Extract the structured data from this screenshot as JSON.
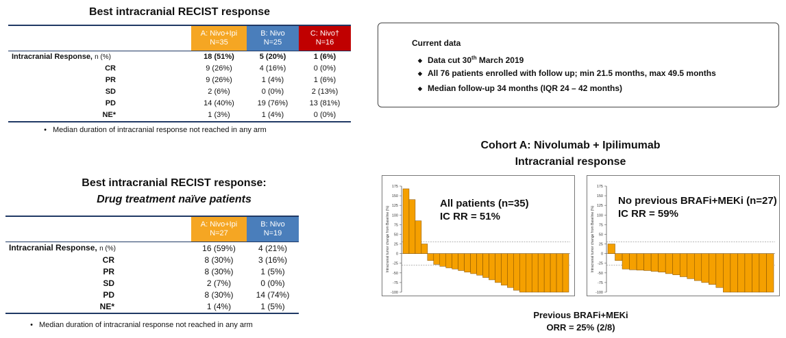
{
  "table1": {
    "title": "Best intracranial RECIST response",
    "columns": [
      {
        "line1": "A: Nivo+Ipi",
        "line2": "N=35",
        "color": "#f5a623"
      },
      {
        "line1": "B: Nivo",
        "line2": "N=25",
        "color": "#4a7ebb"
      },
      {
        "line1": "C: Nivo†",
        "line2": "N=16",
        "color": "#c00000"
      }
    ],
    "main_row": {
      "label": "Intracranial Response,",
      "unit": "n (%)",
      "values": [
        "18 (51%)",
        "5 (20%)",
        "1 (6%)"
      ]
    },
    "rows": [
      {
        "label": "CR",
        "values": [
          "9 (26%)",
          "4 (16%)",
          "0 (0%)"
        ]
      },
      {
        "label": "PR",
        "values": [
          "9 (26%)",
          "1 (4%)",
          "1 (6%)"
        ]
      },
      {
        "label": "SD",
        "values": [
          "2 (6%)",
          "0 (0%)",
          "2 (13%)"
        ]
      },
      {
        "label": "PD",
        "values": [
          "14 (40%)",
          "19 (76%)",
          "13 (81%)"
        ]
      },
      {
        "label": "NE*",
        "values": [
          "1 (3%)",
          "1 (4%)",
          "0 (0%)"
        ]
      }
    ],
    "note": "Median duration of intracranial response not reached in any arm"
  },
  "table2": {
    "title": "Best intracranial RECIST response:",
    "subtitle": "Drug treatment naïve patients",
    "columns": [
      {
        "line1": "A: Nivo+Ipi",
        "line2": "N=27",
        "color": "#f5a623"
      },
      {
        "line1": "B: Nivo",
        "line2": "N=19",
        "color": "#4a7ebb"
      }
    ],
    "main_row": {
      "label": "Intracranial Response,",
      "unit": "n (%)",
      "values": [
        "16 (59%)",
        "4 (21%)"
      ]
    },
    "rows": [
      {
        "label": "CR",
        "values": [
          "8 (30%)",
          "3 (16%)"
        ]
      },
      {
        "label": "PR",
        "values": [
          "8 (30%)",
          "1 (5%)"
        ]
      },
      {
        "label": "SD",
        "values": [
          "2 (7%)",
          "0 (0%)"
        ]
      },
      {
        "label": "PD",
        "values": [
          "8 (30%)",
          "14 (74%)"
        ]
      },
      {
        "label": "NE*",
        "values": [
          "1 (4%)",
          "1 (5%)"
        ]
      }
    ],
    "note": "Median duration of intracranial response not reached in any arm"
  },
  "current_data": {
    "title": "Current data",
    "bullets": [
      {
        "prefix": "Data cut 30",
        "sup": "th",
        "suffix": " March 2019"
      },
      {
        "prefix": "All 76 patients enrolled with follow up; min 21.5 months, max 49.5 months",
        "sup": "",
        "suffix": ""
      },
      {
        "prefix": "Median follow-up 34 months (IQR 24 – 42 months)",
        "sup": "",
        "suffix": ""
      }
    ]
  },
  "cohort": {
    "title_line1": "Cohort A: Nivolumab + Ipilimumab",
    "title_line2": "Intracranial response",
    "footer_line1": "Previous BRAFi+MEKi",
    "footer_line2": "ORR = 25% (2/8)"
  },
  "chart_data": [
    {
      "type": "bar",
      "caption_line1": "All patients (n=35)",
      "caption_line2": "IC RR = 51%",
      "ylabel": "Intracranial tumor change from Baseline (%)",
      "ylim": [
        -100,
        175
      ],
      "yticks": [
        175,
        150,
        125,
        100,
        75,
        50,
        25,
        0,
        -25,
        -50,
        -75,
        -100
      ],
      "tick_labels": [
        "175",
        "150",
        "125",
        "100",
        "75",
        "50",
        "25",
        "0",
        "-25",
        "-50",
        "-75",
        "-100"
      ],
      "reference_lines": [
        30,
        -30
      ],
      "bar_color": "#f5a000",
      "values": [
        168,
        140,
        85,
        25,
        -18,
        -28,
        -33,
        -37,
        -40,
        -44,
        -48,
        -52,
        -56,
        -62,
        -68,
        -75,
        -82,
        -88,
        -95,
        -100,
        -100,
        -100,
        -100,
        -100,
        -100,
        -100,
        -100
      ]
    },
    {
      "type": "bar",
      "caption_line1": "No previous BRAFi+MEKi (n=27)",
      "caption_line2": "IC RR = 59%",
      "ylabel": "Intracranial tumor change from Baseline (%)",
      "ylim": [
        -100,
        175
      ],
      "yticks": [
        175,
        150,
        125,
        100,
        75,
        50,
        25,
        0,
        -25,
        -50,
        -75,
        -100
      ],
      "tick_labels": [
        "175",
        "150",
        "125",
        "100",
        "75",
        "50",
        "25",
        "0",
        "-25",
        "-50",
        "-75",
        "-100"
      ],
      "reference_lines": [
        30,
        -30
      ],
      "bar_color": "#f5a000",
      "values": [
        25,
        -18,
        -40,
        -42,
        -43,
        -44,
        -46,
        -48,
        -52,
        -55,
        -60,
        -65,
        -70,
        -75,
        -80,
        -88,
        -100,
        -100,
        -100,
        -100,
        -100,
        -100,
        -100
      ]
    }
  ]
}
